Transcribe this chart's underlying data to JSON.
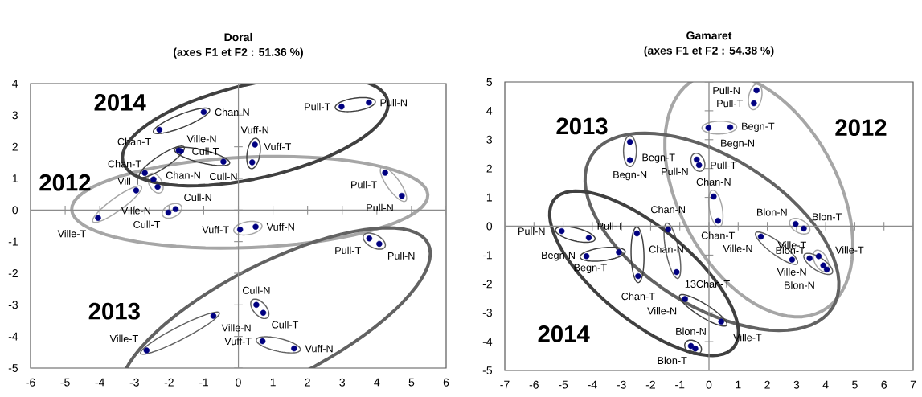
{
  "chart_data": [
    {
      "type": "scatter",
      "title": "Doral",
      "subtitle": "(axes F1 et F2 : 51.36 %)",
      "xlim": [
        -6,
        6
      ],
      "ylim": [
        -5,
        4
      ],
      "xticks": [
        -6,
        -5,
        -4,
        -3,
        -2,
        -1,
        0,
        1,
        2,
        3,
        4,
        5,
        6
      ],
      "yticks": [
        -5,
        -4,
        -3,
        -2,
        -1,
        0,
        1,
        2,
        3,
        4
      ],
      "marker": "circle",
      "series": [
        {
          "color": "#000080",
          "x": [
            -4.05,
            -2.95,
            -2.45,
            -2.33,
            -2.02,
            -1.81,
            0.05,
            0.5,
            4.24,
            4.72
          ],
          "values": [
            -0.25,
            0.62,
            0.97,
            0.73,
            -0.08,
            0.03,
            -0.62,
            -0.53,
            1.18,
            0.45
          ]
        },
        {
          "color": "#000080",
          "x": [
            -0.72,
            -2.65,
            0.52,
            0.72,
            0.7,
            1.61,
            3.78,
            4.07
          ],
          "values": [
            -3.35,
            -4.44,
            -3.0,
            -3.25,
            -4.15,
            -4.38,
            -0.9,
            -1.07
          ]
        },
        {
          "color": "#000080",
          "x": [
            -1.0,
            -2.28,
            -1.72,
            -2.7,
            -1.66,
            -0.43,
            0.48,
            0.4,
            2.98,
            3.77
          ],
          "values": [
            3.1,
            2.54,
            1.88,
            1.17,
            1.86,
            1.53,
            2.07,
            1.51,
            3.27,
            3.4
          ]
        }
      ],
      "annotations": [
        "2014",
        "2012",
        "2013",
        {
          "text": "Ville-T",
          "x": -4.05,
          "y": -0.25
        },
        {
          "text": "Ville-N",
          "x": -2.95,
          "y": 0.62
        },
        {
          "text": "Chan-T",
          "x": -2.45,
          "y": 0.97
        },
        {
          "text": "Chan-N",
          "x": -2.33,
          "y": 0.73
        },
        {
          "text": "Cull-T",
          "x": -2.02,
          "y": -0.08
        },
        {
          "text": "Cull-N",
          "x": -1.81,
          "y": 0.03
        },
        {
          "text": "Vuff-T",
          "x": 0.05,
          "y": -0.62
        },
        {
          "text": "Vuff-N",
          "x": 0.5,
          "y": -0.53
        },
        {
          "text": "Pull-T",
          "x": 4.24,
          "y": 1.18
        },
        {
          "text": "Pull-N",
          "x": 4.72,
          "y": 0.45
        },
        {
          "text": "Ville-N",
          "x": -0.72,
          "y": -3.35
        },
        {
          "text": "Ville-T",
          "x": -2.65,
          "y": -4.44
        },
        {
          "text": "Cull-N",
          "x": 0.52,
          "y": -3.0
        },
        {
          "text": "Cull-T",
          "x": 0.72,
          "y": -3.25
        },
        {
          "text": "Vuff-T",
          "x": 0.7,
          "y": -4.15
        },
        {
          "text": "Vuff-N",
          "x": 1.61,
          "y": -4.38
        },
        {
          "text": "Pull-T",
          "x": 3.78,
          "y": -0.9
        },
        {
          "text": "Pull-N",
          "x": 4.07,
          "y": -1.07
        },
        {
          "text": "Chan-N",
          "x": -1.0,
          "y": 3.1
        },
        {
          "text": "Chan-T",
          "x": -2.28,
          "y": 2.54
        },
        {
          "text": "Ville-N",
          "x": -1.72,
          "y": 1.88
        },
        {
          "text": "Vill-T",
          "x": -2.7,
          "y": 1.17
        },
        {
          "text": "Cull-T",
          "x": -1.66,
          "y": 1.86
        },
        {
          "text": "Cull-N",
          "x": -0.43,
          "y": 1.53
        },
        {
          "text": "Vuff-N",
          "x": 0.48,
          "y": 2.07
        },
        {
          "text": "Vuff-T",
          "x": 0.4,
          "y": 1.51
        },
        {
          "text": "Pull-T",
          "x": 2.98,
          "y": 3.27
        },
        {
          "text": "Pull-N",
          "x": 3.77,
          "y": 3.4
        }
      ]
    },
    {
      "type": "scatter",
      "title": "Gamaret",
      "subtitle": "(axes F1 et F2 : 54.38 %)",
      "xlim": [
        -7,
        7
      ],
      "ylim": [
        -5,
        5
      ],
      "xticks": [
        -7,
        -6,
        -5,
        -4,
        -3,
        -2,
        -1,
        0,
        1,
        2,
        3,
        4,
        5,
        6,
        7
      ],
      "yticks": [
        -5,
        -4,
        -3,
        -2,
        -1,
        0,
        1,
        2,
        3,
        4,
        5
      ],
      "marker": "circle",
      "series": [
        {
          "color": "#000080",
          "x": [
            1.63,
            1.54,
            -0.02,
            0.73,
            0.16,
            0.31,
            2.97,
            3.25,
            3.76,
            3.92
          ],
          "values": [
            4.71,
            4.26,
            3.41,
            3.43,
            1.03,
            0.19,
            0.08,
            -0.08,
            -1.04,
            -1.36
          ]
        },
        {
          "color": "#000080",
          "x": [
            -2.71,
            -2.71,
            -0.42,
            -0.34,
            -1.4,
            -1.11,
            1.78,
            2.85,
            3.45,
            4.04
          ],
          "values": [
            2.92,
            2.29,
            2.31,
            2.12,
            -0.11,
            -1.59,
            -0.36,
            -1.16,
            -1.11,
            -1.5
          ]
        },
        {
          "color": "#000080",
          "x": [
            -5.05,
            -4.12,
            -3.09,
            -4.2,
            -2.47,
            -2.43,
            -0.82,
            0.42,
            -0.62,
            -0.47
          ],
          "values": [
            -0.17,
            -0.4,
            -0.9,
            -1.04,
            -0.25,
            -1.73,
            -2.52,
            -3.31,
            -4.15,
            -4.24
          ]
        }
      ],
      "annotations": [
        "2012",
        "2013",
        "2014",
        {
          "text": "Pull-N",
          "x": 1.63,
          "y": 4.71
        },
        {
          "text": "Pull-T",
          "x": 1.54,
          "y": 4.26
        },
        {
          "text": "Begn-N",
          "x": -0.02,
          "y": 3.41
        },
        {
          "text": "Begn-T",
          "x": 0.73,
          "y": 3.43
        },
        {
          "text": "Chan-N",
          "x": 0.16,
          "y": 1.03
        },
        {
          "text": "Chan-T",
          "x": 0.31,
          "y": 0.19
        },
        {
          "text": "Blon-N",
          "x": 2.97,
          "y": 0.08
        },
        {
          "text": "Blon-T",
          "x": 3.25,
          "y": -0.08
        },
        {
          "text": "Ville-N",
          "x": 3.76,
          "y": -1.04
        },
        {
          "text": "Ville-T",
          "x": 3.92,
          "y": -1.36
        },
        {
          "text": "Begn-T",
          "x": -2.71,
          "y": 2.92
        },
        {
          "text": "Begn-N",
          "x": -2.71,
          "y": 2.29
        },
        {
          "text": "Pull-N",
          "x": -0.42,
          "y": 2.31
        },
        {
          "text": "Pull-T",
          "x": -0.34,
          "y": 2.12
        },
        {
          "text": "Chan-N",
          "x": -1.4,
          "y": -0.11
        },
        {
          "text": "13Chan-T",
          "x": -1.11,
          "y": -1.59
        },
        {
          "text": "Ville-N",
          "x": 1.78,
          "y": -0.36
        },
        {
          "text": "Ville-T",
          "x": 2.85,
          "y": -1.16
        },
        {
          "text": "Blon-T",
          "x": 3.45,
          "y": -1.11
        },
        {
          "text": "Blon-N",
          "x": 4.04,
          "y": -1.5
        },
        {
          "text": "Pull-N",
          "x": -5.05,
          "y": -0.17
        },
        {
          "text": "Pull-T",
          "x": -4.12,
          "y": -0.4
        },
        {
          "text": "Begn-T",
          "x": -3.09,
          "y": -0.9
        },
        {
          "text": "Begn-N",
          "x": -4.2,
          "y": -1.04
        },
        {
          "text": "Chan-N",
          "x": -2.47,
          "y": -0.25
        },
        {
          "text": "Chan-T",
          "x": -2.43,
          "y": -1.73
        },
        {
          "text": "Ville-N",
          "x": -0.82,
          "y": -2.52
        },
        {
          "text": "Ville-T",
          "x": 0.42,
          "y": -3.31
        },
        {
          "text": "Blon-N",
          "x": -0.62,
          "y": -4.15
        },
        {
          "text": "Blon-T",
          "x": -0.47,
          "y": -4.24
        }
      ]
    }
  ]
}
